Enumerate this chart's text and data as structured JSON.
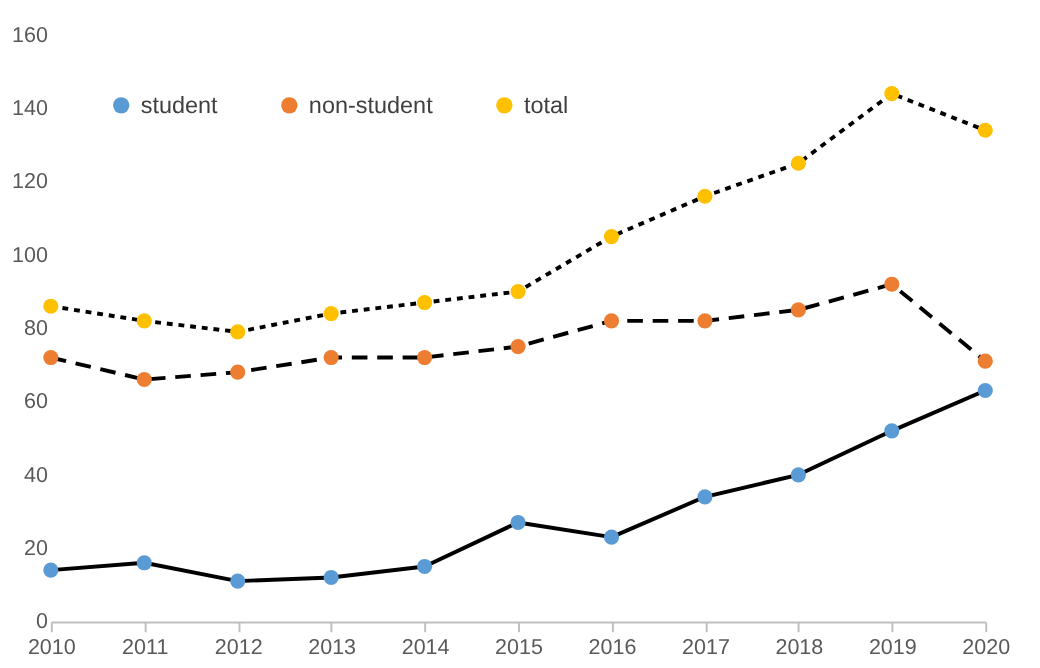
{
  "chart_data": {
    "type": "line",
    "x": [
      2010,
      2011,
      2012,
      2013,
      2014,
      2015,
      2016,
      2017,
      2018,
      2019,
      2020
    ],
    "series": [
      {
        "name": "student",
        "color": "#5b9bd5",
        "line_style": "solid",
        "values": [
          14,
          16,
          11,
          12,
          15,
          27,
          23,
          34,
          40,
          52,
          63
        ]
      },
      {
        "name": "non-student",
        "color": "#ed7d31",
        "line_style": "dashed",
        "values": [
          72,
          66,
          68,
          72,
          72,
          75,
          82,
          82,
          85,
          92,
          71
        ]
      },
      {
        "name": "total",
        "color": "#ffc000",
        "line_style": "dotted",
        "values": [
          86,
          82,
          79,
          84,
          87,
          90,
          105,
          116,
          125,
          144,
          134
        ]
      }
    ],
    "xlim": [
      2010,
      2020
    ],
    "xticks": [
      2010,
      2011,
      2012,
      2013,
      2014,
      2015,
      2016,
      2017,
      2018,
      2019,
      2020
    ],
    "ylim": [
      0,
      160
    ],
    "yticks": [
      0,
      20,
      40,
      60,
      80,
      100,
      120,
      140,
      160
    ],
    "grid": false,
    "legend": "top left",
    "marker": "circle"
  }
}
